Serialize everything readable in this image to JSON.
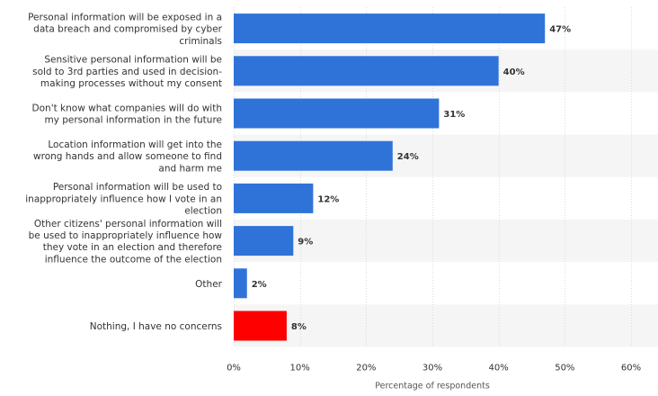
{
  "chart_data": {
    "type": "bar",
    "orientation": "horizontal",
    "title": "",
    "xlabel": "Percentage of respondents",
    "ylabel": "",
    "xlim": [
      0,
      60
    ],
    "ticks": [
      "0%",
      "10%",
      "20%",
      "30%",
      "40%",
      "50%",
      "60%"
    ],
    "tick_values": [
      0,
      10,
      20,
      30,
      40,
      50,
      60
    ],
    "grid": true,
    "categories": [
      "Personal information will be exposed in a data breach and compromised by cyber criminals",
      "Sensitive personal information will be sold to 3rd parties and used in decision-making processes without my consent",
      "Don't know what companies will do with my personal information in the future",
      "Location information will get into the wrong hands and allow someone to find and harm me",
      "Personal information will be used to inappropriately influence how I vote in an election",
      "Other citizens' personal information will be used to inappropriately influence how they vote in an election and therefore influence the outcome of the election",
      "Other",
      "Nothing, I have no concerns"
    ],
    "category_lines": [
      [
        "Personal information will be exposed in a",
        "data breach and compromised by cyber",
        "criminals"
      ],
      [
        "Sensitive personal information will be",
        "sold to 3rd parties and used in decision-",
        "making processes without my consent"
      ],
      [
        "Don't know what companies will do with",
        "my personal information in the future"
      ],
      [
        "Location information will get into the",
        "wrong hands and allow someone to find",
        "and harm me"
      ],
      [
        "Personal information will be used to",
        "inappropriately influence how I vote in an",
        "election"
      ],
      [
        "Other citizens' personal information will",
        "be used to inappropriately influence how",
        "they vote in an election and therefore",
        "influence the outcome of the election"
      ],
      [
        "Other"
      ],
      [
        "Nothing, I have no concerns"
      ]
    ],
    "values": [
      47,
      40,
      31,
      24,
      12,
      9,
      2,
      8
    ],
    "value_labels": [
      "47%",
      "40%",
      "31%",
      "24%",
      "12%",
      "9%",
      "2%",
      "8%"
    ],
    "colors": [
      "#2f73d9",
      "#2f73d9",
      "#2f73d9",
      "#2f73d9",
      "#2f73d9",
      "#2f73d9",
      "#2f73d9",
      "#ff0000"
    ],
    "stripe_color": "#f5f5f5",
    "grid_color": "#dddddd"
  }
}
